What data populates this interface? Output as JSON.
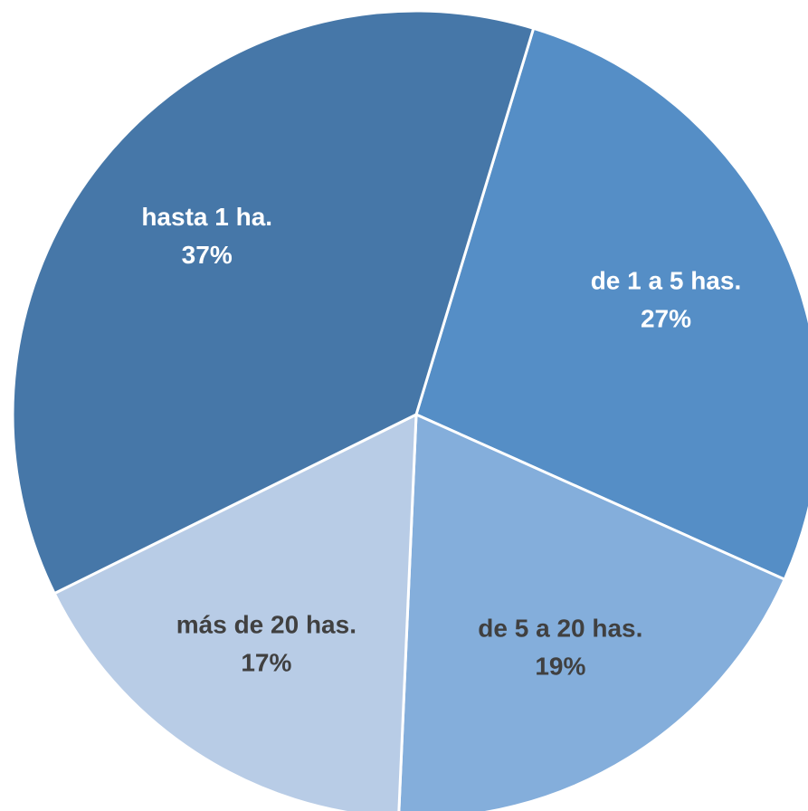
{
  "chart_data": {
    "type": "pie",
    "categories": [
      "de 1 a 5 has.",
      "de 5 a 20 has.",
      "más de 20 has.",
      "hasta 1 ha."
    ],
    "values": [
      27,
      19,
      17,
      37
    ],
    "value_labels": [
      "27%",
      "19%",
      "17%",
      "37%"
    ],
    "colors": [
      "#558ec6",
      "#84aedb",
      "#b8cce6",
      "#4677a8"
    ],
    "label_colors": [
      "#ffffff",
      "#404040",
      "#404040",
      "#ffffff"
    ]
  }
}
